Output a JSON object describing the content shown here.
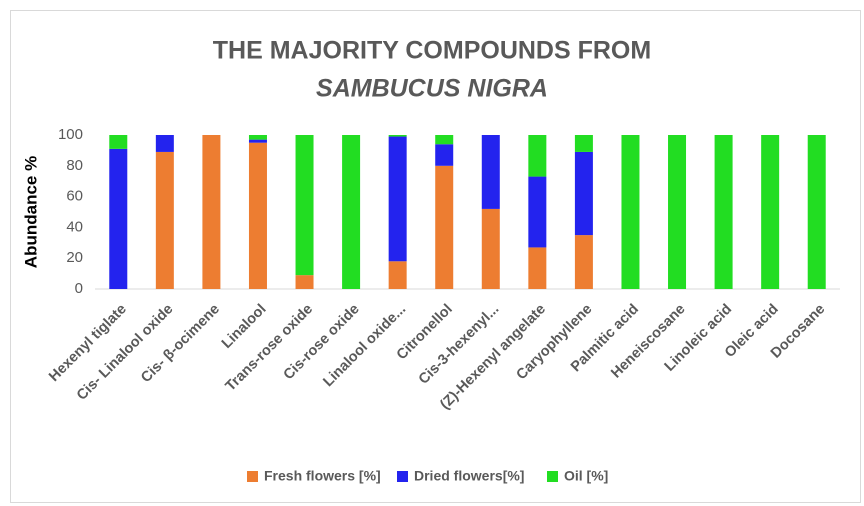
{
  "chart_data": {
    "type": "stacked-bar",
    "title": "THE MAJORITY COMPOUNDS FROM",
    "subtitle": "SAMBUCUS NIGRA",
    "y_label": "Abundance %",
    "categories": [
      "Hexenyl tiglate",
      "Cis- Linalool oxide",
      "Cis- β-ocimene",
      "Linalool",
      "Trans-rose oxide",
      "Cis-rose oxide",
      "Linalool oxide...",
      "Citronellol",
      "Cis-3-hexenyl...",
      "(Z)-Hexenyl angelate",
      "Caryophyllene",
      "Palmitic acid",
      "Heneiscosane",
      "Linoleic acid",
      "Oleic acid",
      "Docosane"
    ],
    "series": [
      {
        "name": "Fresh flowers [%]",
        "color": "#ed7d31",
        "values": [
          0,
          89,
          100,
          95,
          9,
          0,
          18,
          80,
          52,
          27,
          35,
          0,
          0,
          0,
          0,
          0
        ]
      },
      {
        "name": "Dried flowers[%]",
        "color": "#2323ee",
        "values": [
          91,
          11,
          0,
          2,
          0,
          0,
          81,
          14,
          48,
          46,
          54,
          0,
          0,
          0,
          0,
          0
        ]
      },
      {
        "name": "Oil [%]",
        "color": "#22dd22",
        "values": [
          9,
          0,
          0,
          3,
          91,
          100,
          1,
          6,
          0,
          27,
          11,
          100,
          100,
          100,
          100,
          100
        ]
      }
    ],
    "ylim": [
      0,
      100
    ],
    "yticks": [
      0,
      20,
      40,
      60,
      80,
      100
    ],
    "grid": false,
    "legend": "bottom"
  }
}
